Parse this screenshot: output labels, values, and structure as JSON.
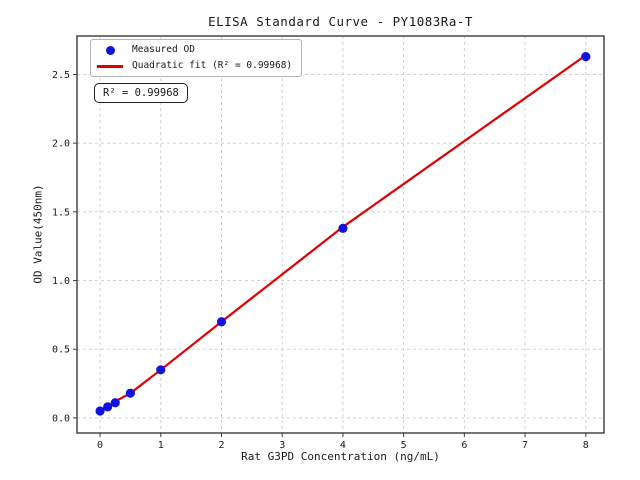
{
  "figure": {
    "background": "#ffffff"
  },
  "chart_data": {
    "type": "scatter",
    "title": "ELISA Standard Curve - PY1083Ra-T",
    "xlabel": "Rat G3PD Concentration (ng/mL)",
    "ylabel": "OD Value(450nm)",
    "xlim": [
      -0.38,
      8.3
    ],
    "ylim": [
      -0.11,
      2.78
    ],
    "xtick_values": [
      0,
      1,
      2,
      3,
      4,
      5,
      6,
      7,
      8
    ],
    "xtick_labels": [
      "0",
      "1",
      "2",
      "3",
      "4",
      "5",
      "6",
      "7",
      "8"
    ],
    "ytick_values": [
      0,
      0.5,
      1,
      1.5,
      2,
      2.5
    ],
    "ytick_labels": [
      "0.0",
      "0.5",
      "1.0",
      "1.5",
      "2.0",
      "2.5"
    ],
    "grid": true,
    "grid_style": "dashed",
    "legend_position": "upper-left",
    "series": [
      {
        "name": "Measured OD",
        "kind": "scatter",
        "color": "#1212dd",
        "x": [
          0,
          0.125,
          0.25,
          0.5,
          1,
          2,
          4,
          8
        ],
        "y": [
          0.05,
          0.08,
          0.11,
          0.18,
          0.35,
          0.7,
          1.38,
          2.63
        ]
      },
      {
        "name": "Quadratic fit (R² = 0.99968)",
        "kind": "line",
        "color": "#e00000",
        "x": [
          0,
          0.125,
          0.25,
          0.5,
          1,
          2,
          4,
          8
        ],
        "y": [
          0.05,
          0.08,
          0.12,
          0.18,
          0.35,
          0.7,
          1.39,
          2.64
        ]
      }
    ],
    "annotation": "R² = 0.99968",
    "r_squared": 0.99968,
    "colors": {
      "grid": "#cccccc",
      "frame": "#3a3a3a",
      "text": "#1a1a1a"
    }
  }
}
